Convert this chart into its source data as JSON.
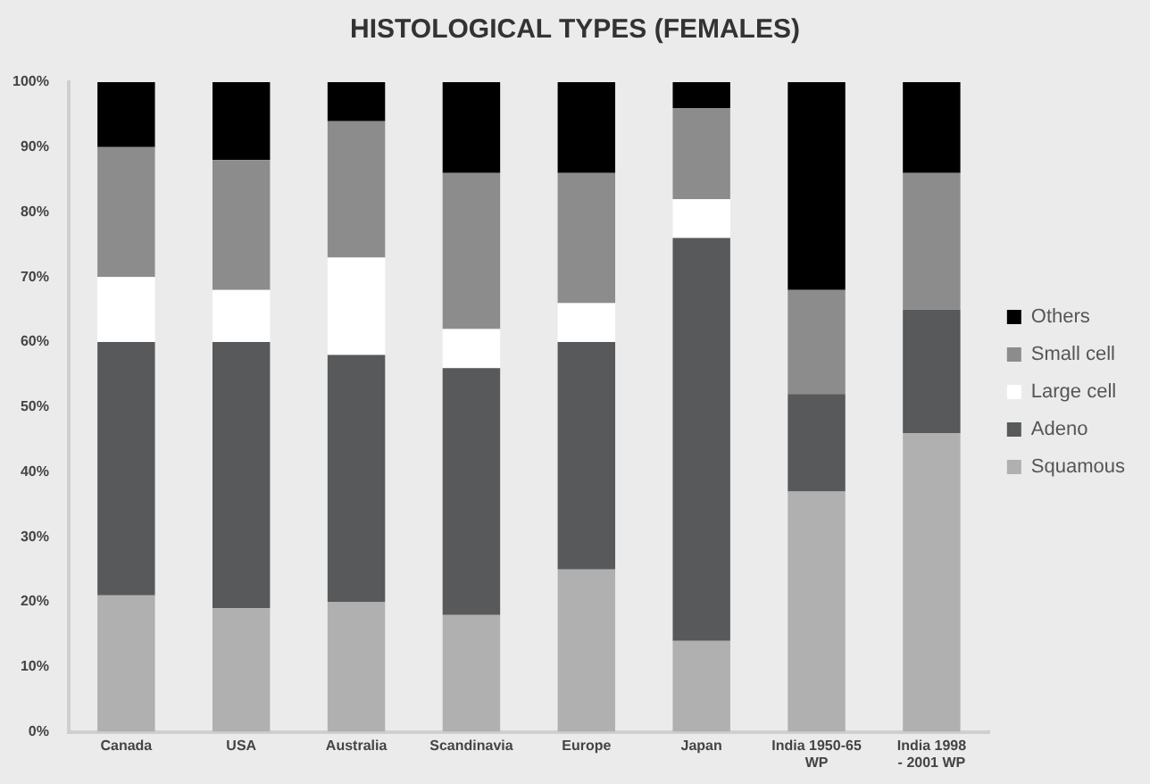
{
  "chart_data": {
    "type": "bar",
    "title": "HISTOLOGICAL TYPES (FEMALES)",
    "categories": [
      "Canada",
      "USA",
      "Australia",
      "Scandinavia",
      "Europe",
      "Japan",
      "India 1950-65 WP",
      "India 1998 - 2001 WP"
    ],
    "stacked": true,
    "series": [
      {
        "name": "Squamous",
        "color": "#b0b0b0",
        "values": [
          21,
          19,
          20,
          18,
          25,
          14,
          37,
          46
        ]
      },
      {
        "name": "Adeno",
        "color": "#58595b",
        "values": [
          39,
          41,
          38,
          38,
          35,
          62,
          15,
          19
        ]
      },
      {
        "name": "Large cell",
        "color": "#ffffff",
        "values": [
          10,
          8,
          15,
          6,
          6,
          6,
          0,
          0
        ]
      },
      {
        "name": "Small cell",
        "color": "#8c8c8c",
        "values": [
          20,
          20,
          21,
          24,
          20,
          14,
          16,
          21
        ]
      },
      {
        "name": "Others",
        "color": "#000000",
        "values": [
          10,
          12,
          6,
          14,
          14,
          4,
          32,
          14
        ]
      }
    ],
    "ylim": [
      0,
      100
    ],
    "yticks": [
      {
        "value": 0,
        "label": "0%"
      },
      {
        "value": 10,
        "label": "10%"
      },
      {
        "value": 20,
        "label": "20%"
      },
      {
        "value": 30,
        "label": "30%"
      },
      {
        "value": 40,
        "label": "40%"
      },
      {
        "value": 50,
        "label": "50%"
      },
      {
        "value": 60,
        "label": "60%"
      },
      {
        "value": 70,
        "label": "70%"
      },
      {
        "value": 80,
        "label": "80%"
      },
      {
        "value": 90,
        "label": "90%"
      },
      {
        "value": 100,
        "label": "100%"
      }
    ],
    "grid": false,
    "legend": "right"
  }
}
